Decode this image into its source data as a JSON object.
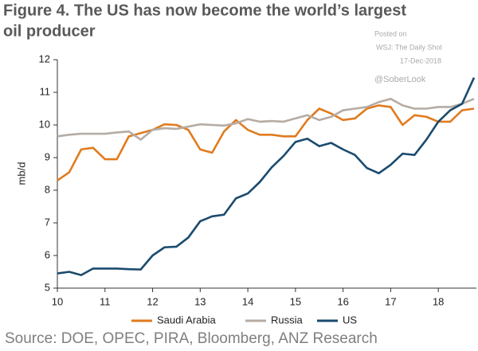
{
  "chart_data": {
    "type": "line",
    "title": "Figure 4. The US has now become the world’s largest oil producer",
    "annotations": [
      "Posted on",
      "WSJ: The Daily Shot",
      "17-Dec-2018",
      "@SoberLook"
    ],
    "source": "Source: DOE, OPEC, PIRA, Bloomberg, ANZ Research",
    "ylabel": "mb/d",
    "x": [
      10,
      10.25,
      10.5,
      10.75,
      11,
      11.25,
      11.5,
      11.75,
      12,
      12.25,
      12.5,
      12.75,
      13,
      13.25,
      13.5,
      13.75,
      14,
      14.25,
      14.5,
      14.75,
      15,
      15.25,
      15.5,
      15.75,
      16,
      16.25,
      16.5,
      16.75,
      17,
      17.25,
      17.5,
      17.75,
      18,
      18.25,
      18.5,
      18.75
    ],
    "series": [
      {
        "name": "Saudi Arabia",
        "color": "#e07b1f",
        "values": [
          8.3,
          8.55,
          9.25,
          9.3,
          8.95,
          8.95,
          9.65,
          9.75,
          9.85,
          10.02,
          10.0,
          9.85,
          9.25,
          9.15,
          9.8,
          10.15,
          9.85,
          9.7,
          9.7,
          9.65,
          9.65,
          10.15,
          10.5,
          10.35,
          10.15,
          10.2,
          10.5,
          10.6,
          10.55,
          10.0,
          10.3,
          10.25,
          10.1,
          10.1,
          10.45,
          10.5
        ]
      },
      {
        "name": "Russia",
        "color": "#b5aca4",
        "values": [
          9.65,
          9.7,
          9.73,
          9.73,
          9.73,
          9.77,
          9.8,
          9.55,
          9.85,
          9.9,
          9.88,
          9.95,
          10.02,
          10.0,
          9.98,
          10.05,
          10.18,
          10.1,
          10.12,
          10.1,
          10.2,
          10.3,
          10.15,
          10.25,
          10.45,
          10.5,
          10.55,
          10.7,
          10.8,
          10.6,
          10.5,
          10.5,
          10.55,
          10.55,
          10.65,
          10.8
        ]
      },
      {
        "name": "US",
        "color": "#1a4b6e",
        "values": [
          5.45,
          5.5,
          5.4,
          5.6,
          5.6,
          5.6,
          5.58,
          5.57,
          6.0,
          6.25,
          6.27,
          6.55,
          7.05,
          7.2,
          7.25,
          7.75,
          7.9,
          8.25,
          8.7,
          9.05,
          9.48,
          9.58,
          9.35,
          9.45,
          9.25,
          9.08,
          8.68,
          8.52,
          8.78,
          9.12,
          9.08,
          9.55,
          10.1,
          10.45,
          10.65,
          11.45
        ]
      }
    ],
    "xlim": [
      10,
      18.8
    ],
    "xticks": [
      10,
      11,
      12,
      13,
      14,
      15,
      16,
      17,
      18
    ],
    "ylim": [
      5,
      12
    ],
    "yticks": [
      5,
      6,
      7,
      8,
      9,
      10,
      11,
      12
    ],
    "grid": false,
    "legend": "bottom"
  }
}
